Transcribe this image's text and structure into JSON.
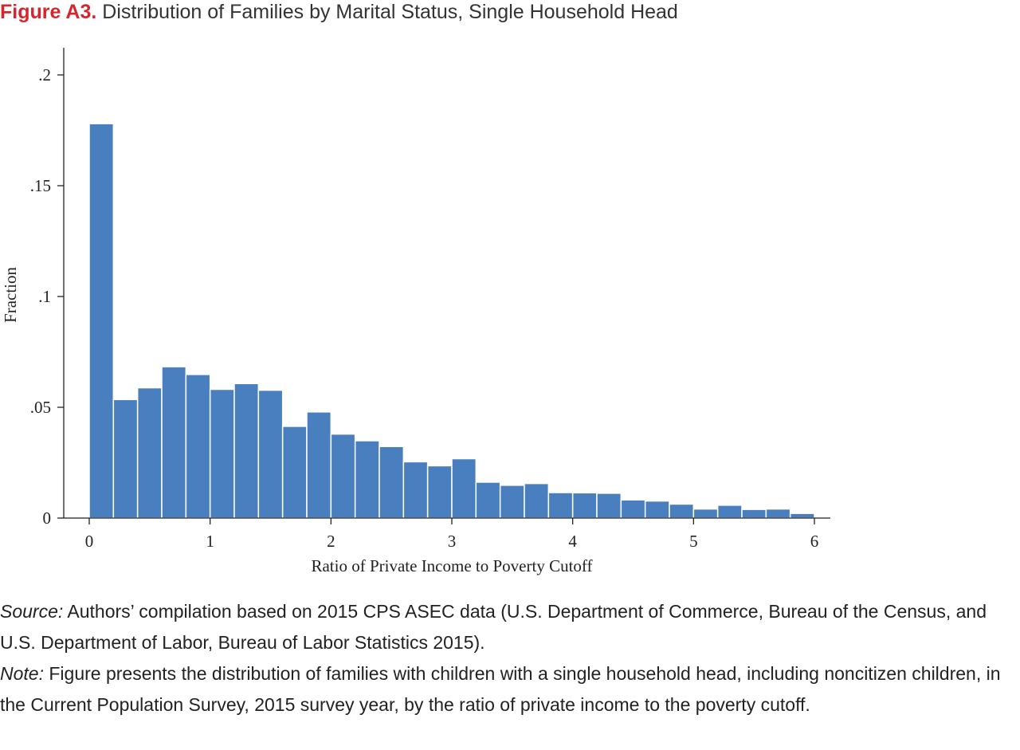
{
  "figure": {
    "label": "Figure A3.",
    "title": "Distribution of Families by Marital Status, Single Household Head"
  },
  "source": {
    "label": "Source:",
    "text": " Authors’ compilation based on 2015 CPS ASEC data (U.S. Department of Commerce, Bureau of the Census, and U.S. Department of Labor, Bureau of Labor Statistics 2015)."
  },
  "note": {
    "label": "Note:",
    "text": " Figure presents the distribution of families with children with a single household head, including noncitizen children, in the Current Population Survey, 2015 survey year, by the ratio of private income to the poverty cutoff."
  },
  "colors": {
    "bar": "#4a7fbf",
    "axis": "#222222"
  },
  "chart_data": {
    "type": "bar",
    "xlabel": "Ratio of Private Income to Poverty Cutoff",
    "ylabel": "Fraction",
    "xlim": [
      0,
      6
    ],
    "ylim": [
      0,
      0.2
    ],
    "bin_width": 0.2,
    "bin_starts": [
      0,
      0.2,
      0.4,
      0.6,
      0.8,
      1.0,
      1.2,
      1.4,
      1.6,
      1.8,
      2.0,
      2.2,
      2.4,
      2.6,
      2.8,
      3.0,
      3.2,
      3.4,
      3.6,
      3.8,
      4.0,
      4.2,
      4.4,
      4.6,
      4.8,
      5.0,
      5.2,
      5.4,
      5.6,
      5.8
    ],
    "values": [
      0.178,
      0.0535,
      0.0588,
      0.0683,
      0.0648,
      0.0581,
      0.0607,
      0.0577,
      0.0414,
      0.0479,
      0.0379,
      0.0349,
      0.0323,
      0.0254,
      0.0236,
      0.0268,
      0.0162,
      0.0148,
      0.0156,
      0.0115,
      0.0114,
      0.0112,
      0.0082,
      0.0077,
      0.0063,
      0.0041,
      0.0058,
      0.0039,
      0.0041,
      0.0021
    ],
    "x_ticks": [
      0,
      1,
      2,
      3,
      4,
      5,
      6
    ],
    "x_tick_labels": [
      "0",
      "1",
      "2",
      "3",
      "4",
      "5",
      "6"
    ],
    "y_ticks": [
      0,
      0.05,
      0.1,
      0.15,
      0.2
    ],
    "y_tick_labels": [
      "0",
      ".05",
      ".1",
      ".15",
      ".2"
    ],
    "grid": false
  }
}
